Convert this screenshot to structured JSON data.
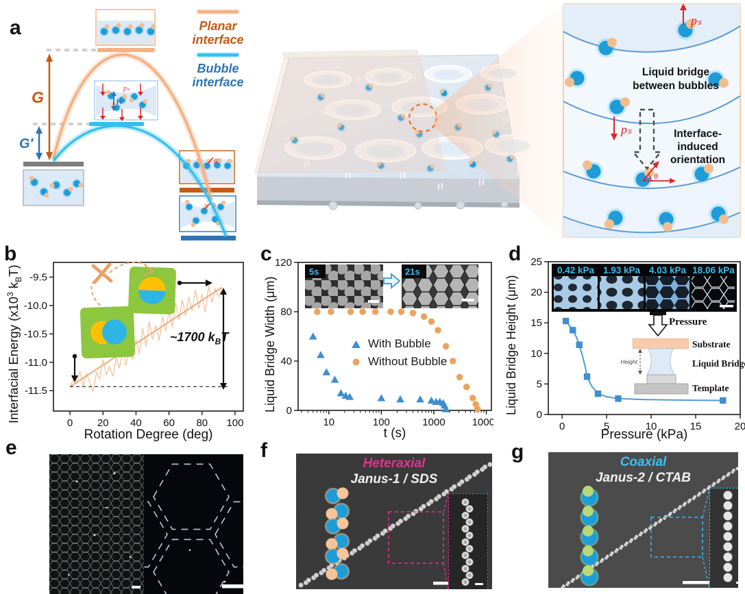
{
  "panel_labels": {
    "a": "a",
    "b": "b",
    "c": "c",
    "d": "d",
    "e": "e",
    "f": "f",
    "g": "g"
  },
  "colors": {
    "planar_orange_dark": "#C55A11",
    "planar_orange_light": "#F4B183",
    "bubble_cyan": "#33BFEF",
    "bubble_text_blue": "#2E74B5",
    "marker_blue": "#3E8ED0",
    "marker_orange": "#EBA45F",
    "inset_green": "#8DC63F",
    "inset_yellow": "#FFC000",
    "inset_blue": "#2FB4E6",
    "heteraxial_pink": "#E6318F",
    "coaxial_cyan": "#35BDF2",
    "annotation_red": "#E0242A"
  },
  "panels": {
    "a": {
      "legend": {
        "planar_l1": "Planar",
        "planar_l2": "interface",
        "bubble_l1": "Bubble",
        "bubble_l2": "interface"
      },
      "g": "G",
      "g_prime": "G′",
      "ps": "pₛ",
      "h": "H",
      "theta": "θ",
      "right": {
        "liquid_l1": "Liquid bridge",
        "liquid_l2": "between bubbles",
        "orient_l1": "Interface-",
        "orient_l2": "induced",
        "orient_l3": "orientation"
      }
    },
    "f": {
      "title": "Heteraxial",
      "subtitle": "Janus-1 / SDS"
    },
    "g": {
      "title": "Coaxial",
      "subtitle": "Janus-2 / CTAB"
    }
  },
  "chart_data": [
    {
      "id": "b",
      "type": "line",
      "title": "",
      "xlabel": "Rotation Degree (deg)",
      "ylabel": "Interfacial Energy (x10³ kBT)",
      "ylabel_parts": {
        "pre": "Interfacial Energy (x10",
        "sup": "3",
        "mid": " k",
        "sub": "B",
        "post": "T)"
      },
      "annotation": "~1700 kBT",
      "annotation_parts": {
        "pre": "~1700 k",
        "sub": "B",
        "post": "T"
      },
      "xlim": [
        -10,
        105
      ],
      "ylim": [
        -11.86,
        -9.24
      ],
      "xticks": [
        0,
        20,
        40,
        60,
        80,
        100
      ],
      "xtick_labels": [
        "0",
        "20",
        "40",
        "60",
        "80",
        "100"
      ],
      "yticks": [
        -9.5,
        -10,
        -10.5,
        -11,
        -11.5
      ],
      "ytick_labels": [
        "-9.5",
        "-10.0",
        "-10.5",
        "-11.0",
        "-11.5"
      ],
      "grid": false,
      "legend_position": "none",
      "series": [
        {
          "name": "interfacial-energy-trace",
          "line": true,
          "color": "#F6C29A",
          "width": 1.3,
          "points": [
            [
              0,
              -11.45
            ],
            [
              2,
              -11.3
            ],
            [
              4,
              -11.38
            ],
            [
              6,
              -11.15
            ],
            [
              8,
              -11.42
            ],
            [
              10,
              -11.2
            ],
            [
              12,
              -11.35
            ],
            [
              14,
              -11.52
            ],
            [
              16,
              -11.18
            ],
            [
              18,
              -11.3
            ],
            [
              20,
              -10.95
            ],
            [
              22,
              -11.22
            ],
            [
              24,
              -11.08
            ],
            [
              26,
              -11.25
            ],
            [
              28,
              -10.92
            ],
            [
              30,
              -11.1
            ],
            [
              32,
              -10.8
            ],
            [
              34,
              -11.05
            ],
            [
              36,
              -10.72
            ],
            [
              38,
              -10.95
            ],
            [
              40,
              -10.6
            ],
            [
              42,
              -10.85
            ],
            [
              44,
              -10.4
            ],
            [
              46,
              -10.72
            ],
            [
              48,
              -10.28
            ],
            [
              50,
              -10.6
            ],
            [
              52,
              -10.35
            ],
            [
              54,
              -10.62
            ],
            [
              56,
              -10.2
            ],
            [
              58,
              -10.45
            ],
            [
              60,
              -10.1
            ],
            [
              62,
              -10.38
            ],
            [
              64,
              -9.95
            ],
            [
              66,
              -10.25
            ],
            [
              68,
              -9.9
            ],
            [
              70,
              -10.18
            ],
            [
              72,
              -9.85
            ],
            [
              74,
              -10.1
            ],
            [
              76,
              -9.72
            ],
            [
              78,
              -10.05
            ],
            [
              80,
              -9.8
            ],
            [
              82,
              -10.12
            ],
            [
              84,
              -9.65
            ],
            [
              86,
              -9.95
            ],
            [
              88,
              -9.7
            ],
            [
              90,
              -9.85
            ],
            [
              92,
              -9.68
            ]
          ]
        },
        {
          "name": "linear-fit",
          "line": true,
          "color": "#EDA06B",
          "width": 1.7,
          "points": [
            [
              0,
              -11.43
            ],
            [
              92,
              -9.68
            ]
          ]
        },
        {
          "name": "baseline",
          "line": true,
          "color": "#333333",
          "width": 1.2,
          "dash": "5 4",
          "points": [
            [
              0,
              -11.43
            ],
            [
              97,
              -11.43
            ]
          ]
        }
      ]
    },
    {
      "id": "c",
      "type": "scatter",
      "xscale": "log",
      "title": "",
      "xlabel": "t (s)",
      "ylabel": "Liquid Bridge Width (μm)",
      "xlim": [
        2.6,
        12500
      ],
      "ylim": [
        0,
        120
      ],
      "xticks": [
        10,
        100,
        1000,
        10000
      ],
      "xtick_labels": [
        "10",
        "100",
        "1000",
        "10000"
      ],
      "yticks": [
        0,
        40,
        80,
        120
      ],
      "ytick_labels": [
        "0",
        "40",
        "80",
        "120"
      ],
      "grid": false,
      "legend_position": "center",
      "series": [
        {
          "name": "With Bubble",
          "marker": "triangle",
          "color": "#3E8ED0",
          "points": [
            [
              5,
              60
            ],
            [
              7,
              45
            ],
            [
              9,
              31
            ],
            [
              13,
              25
            ],
            [
              17,
              14
            ],
            [
              21,
              12
            ],
            [
              25,
              11
            ],
            [
              100,
              10
            ],
            [
              230,
              9
            ],
            [
              550,
              9
            ],
            [
              900,
              8
            ],
            [
              1100,
              7
            ],
            [
              1300,
              7
            ],
            [
              1500,
              6
            ],
            [
              1600,
              4
            ],
            [
              1700,
              1
            ]
          ]
        },
        {
          "name": "Without Bubble",
          "marker": "circle",
          "color": "#EBA45F",
          "points": [
            [
              6,
              80
            ],
            [
              11,
              80
            ],
            [
              26,
              80
            ],
            [
              44,
              80
            ],
            [
              77,
              80
            ],
            [
              150,
              80
            ],
            [
              240,
              80
            ],
            [
              400,
              79
            ],
            [
              650,
              76
            ],
            [
              900,
              72
            ],
            [
              1200,
              65
            ],
            [
              1700,
              52
            ],
            [
              2300,
              40
            ],
            [
              3100,
              27
            ],
            [
              4200,
              19
            ],
            [
              5500,
              10
            ],
            [
              6300,
              5
            ],
            [
              6800,
              1
            ]
          ]
        }
      ],
      "insets": {
        "left_label": "5s",
        "right_label": "21s"
      }
    },
    {
      "id": "d",
      "type": "scatter-line",
      "title": "",
      "xlabel": "Pressure (kPa)",
      "ylabel": "Liquid Bridge Height (μm)",
      "xlim": [
        -1.55,
        20
      ],
      "ylim": [
        0,
        25
      ],
      "xticks": [
        0,
        5,
        10,
        15,
        20
      ],
      "xtick_labels": [
        "0",
        "5",
        "10",
        "15",
        "20"
      ],
      "yticks": [
        0,
        5,
        10,
        15,
        20,
        25
      ],
      "ytick_labels": [
        "0",
        "5",
        "10",
        "15",
        "20",
        "25"
      ],
      "grid": false,
      "legend_position": "none",
      "series": [
        {
          "name": "fit-curve",
          "line": true,
          "color": "#4C9BD8",
          "width": 2,
          "points": [
            [
              0.42,
              15.3
            ],
            [
              0.8,
              14.6
            ],
            [
              1.2,
              13.8
            ],
            [
              1.6,
              12.7
            ],
            [
              1.93,
              11.4
            ],
            [
              2.3,
              9.5
            ],
            [
              2.6,
              7.8
            ],
            [
              2.8,
              6.2
            ],
            [
              3.3,
              4.7
            ],
            [
              4.03,
              3.4
            ],
            [
              5,
              2.9
            ],
            [
              6.3,
              2.6
            ],
            [
              9,
              2.45
            ],
            [
              12,
              2.38
            ],
            [
              15,
              2.33
            ],
            [
              18.06,
              2.3
            ]
          ]
        },
        {
          "name": "liquid-bridge-height",
          "marker": "square",
          "color": "#3E8ED0",
          "points": [
            [
              0.42,
              15.3
            ],
            [
              1.2,
              13.8
            ],
            [
              1.93,
              11.4
            ],
            [
              2.8,
              6.2
            ],
            [
              4.03,
              3.4
            ],
            [
              6.3,
              2.6
            ],
            [
              18.06,
              2.3
            ]
          ]
        }
      ],
      "insets": {
        "pressures": [
          "0.42 kPa",
          "1.93 kPa",
          "4.03 kPa",
          "18.06 kPa"
        ],
        "schematic": {
          "pressure": "Pressure",
          "substrate": "Substrate",
          "liquid_bridge": "Liquid Bridge",
          "template": "Template",
          "height": "Height"
        }
      }
    }
  ]
}
